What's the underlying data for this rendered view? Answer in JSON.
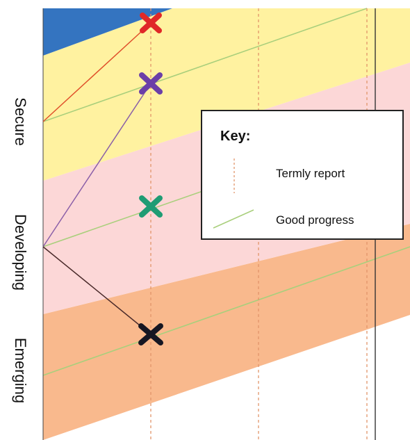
{
  "diagram": {
    "level_labels": {
      "secure": "Secure",
      "developing": "Developing",
      "emerging": "Emerging"
    },
    "key": {
      "title": "Key:",
      "termly_report_label": "Termly report",
      "good_progress_label": "Good progress"
    },
    "colors": {
      "band_blue": "#3474c0",
      "band_yellow": "#fff2a0",
      "band_pink": "#fcd7d7",
      "band_orange": "#f9b98d",
      "termly_line": "#e2946a",
      "good_progress_line": "#a9cf7c",
      "marker_red": "#e02828",
      "marker_purple": "#6b3fa8",
      "marker_green": "#1f9c74",
      "marker_black": "#161622",
      "path_red": "#e0502b",
      "path_purple": "#8a5fa8",
      "path_dark": "#4a2a2a",
      "vertical_solid": "#333333"
    }
  }
}
